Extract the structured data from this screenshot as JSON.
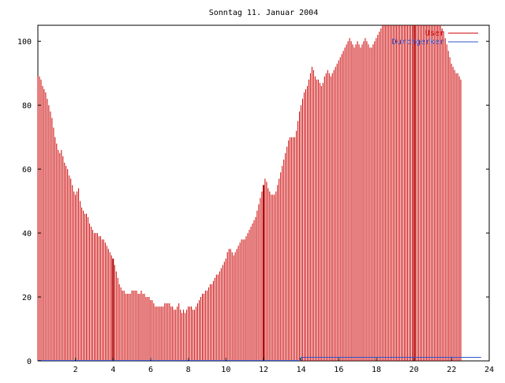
{
  "chart_data": {
    "type": "bar",
    "title": "Sonntag 11. Januar 2004",
    "xlabel": "",
    "ylabel": "",
    "xlim": [
      0,
      24
    ],
    "ylim": [
      0,
      105
    ],
    "x_ticks": [
      2,
      4,
      6,
      8,
      10,
      12,
      14,
      16,
      18,
      20,
      22,
      24
    ],
    "x_tick_labels": [
      "2",
      "4",
      "6",
      "8",
      "10",
      "12",
      "14",
      "16",
      "18",
      "20",
      "22",
      "24"
    ],
    "y_ticks": [
      0,
      20,
      40,
      60,
      80,
      100
    ],
    "y_tick_labels": [
      "0",
      "20",
      "40",
      "60",
      "80",
      "100"
    ],
    "grid": false,
    "legend": "top-right",
    "x_step_hours": 0.0833,
    "series": [
      {
        "name": "User",
        "color": "#cc0000",
        "values": [
          89,
          89,
          88,
          86,
          85,
          84,
          82,
          80,
          78,
          76,
          73,
          70,
          68,
          66,
          65,
          66,
          64,
          62,
          61,
          60,
          58,
          57,
          55,
          53,
          52,
          53,
          54,
          50,
          48,
          47,
          46,
          46,
          45,
          43,
          42,
          41,
          40,
          40,
          40,
          39,
          39,
          38,
          38,
          37,
          36,
          35,
          34,
          33,
          32,
          30,
          28,
          26,
          24,
          23,
          22,
          22,
          21,
          21,
          21,
          21,
          22,
          22,
          22,
          22,
          21,
          21,
          22,
          21,
          21,
          20,
          20,
          20,
          19,
          19,
          18,
          17,
          17,
          17,
          17,
          17,
          17,
          18,
          18,
          18,
          18,
          17,
          17,
          16,
          16,
          17,
          18,
          16,
          15,
          16,
          15,
          16,
          17,
          17,
          17,
          16,
          16,
          17,
          18,
          19,
          20,
          21,
          21,
          22,
          22,
          23,
          24,
          24,
          25,
          26,
          27,
          27,
          28,
          29,
          30,
          31,
          32,
          34,
          35,
          35,
          34,
          33,
          34,
          35,
          36,
          37,
          38,
          38,
          38,
          39,
          40,
          41,
          42,
          43,
          44,
          45,
          47,
          49,
          51,
          53,
          55,
          57,
          56,
          54,
          53,
          52,
          52,
          52,
          53,
          55,
          57,
          59,
          61,
          63,
          65,
          67,
          69,
          70,
          70,
          70,
          70,
          72,
          75,
          78,
          80,
          82,
          84,
          85,
          86,
          88,
          90,
          92,
          91,
          89,
          88,
          88,
          87,
          86,
          87,
          89,
          90,
          91,
          90,
          89,
          90,
          91,
          92,
          93,
          94,
          95,
          96,
          97,
          98,
          99,
          100,
          101,
          100,
          99,
          98,
          99,
          100,
          99,
          98,
          99,
          100,
          101,
          100,
          99,
          98,
          98,
          99,
          100,
          101,
          102,
          103,
          104,
          105,
          105,
          105,
          105,
          105,
          105,
          105,
          105,
          105,
          105,
          105,
          105,
          105,
          105,
          105,
          105,
          105,
          105,
          105,
          105,
          105,
          105,
          105,
          105,
          105,
          105,
          105,
          105,
          105,
          105,
          105,
          105,
          105,
          105,
          105,
          105,
          105,
          105,
          104,
          103,
          101,
          99,
          97,
          95,
          93,
          92,
          91,
          90,
          90,
          89,
          88
        ]
      },
      {
        "name": "Durchgerker",
        "color": "#3355cc",
        "values": [
          0,
          0,
          0,
          0,
          0,
          0,
          0,
          0,
          0,
          0,
          0,
          0,
          0,
          0,
          0,
          0,
          0,
          0,
          0,
          0,
          0,
          0,
          0,
          0,
          0,
          0,
          0,
          0,
          0,
          0,
          0,
          0,
          0,
          0,
          0,
          0,
          0,
          0,
          0,
          0,
          0,
          0,
          0,
          0,
          0,
          0,
          0,
          0,
          0,
          0,
          0,
          0,
          0,
          0,
          0,
          0,
          0,
          0,
          0,
          0,
          0,
          0,
          0,
          0,
          0,
          0,
          0,
          0,
          0,
          0,
          0,
          0,
          0,
          0,
          0,
          0,
          0,
          0,
          0,
          0,
          0,
          0,
          0,
          0,
          0,
          0,
          0,
          0,
          0,
          0,
          0,
          0,
          0,
          0,
          0,
          0,
          0,
          0,
          0,
          0,
          0,
          0,
          0,
          0,
          0,
          0,
          0,
          0,
          0,
          0,
          0,
          0,
          0,
          0,
          0,
          0,
          0,
          0,
          0,
          0,
          0,
          0,
          0,
          0,
          0,
          0,
          0,
          0,
          0,
          0,
          0,
          0,
          0,
          0,
          0,
          0,
          0,
          0,
          0,
          0,
          0,
          0,
          0,
          0,
          0,
          0,
          0,
          0,
          0,
          0,
          0,
          0,
          0,
          0,
          0,
          0,
          0,
          0,
          0,
          0,
          0,
          0,
          0,
          0,
          0,
          0,
          0,
          0,
          1,
          1,
          1,
          1,
          1,
          1,
          1,
          1,
          1,
          1,
          1,
          1,
          1,
          1,
          1,
          1,
          1,
          1,
          1,
          1,
          1,
          1,
          1,
          1,
          1,
          1,
          1,
          1,
          1,
          1,
          1,
          1,
          1,
          1,
          1,
          1,
          1,
          1,
          1,
          1,
          1,
          1,
          1,
          1,
          1,
          1,
          1,
          1,
          1,
          1,
          1,
          1,
          1,
          1,
          1,
          1,
          1,
          1,
          1,
          1,
          1,
          1,
          1,
          1,
          1,
          1,
          1,
          1,
          1,
          1,
          1,
          1,
          1,
          1,
          1,
          1,
          1,
          1,
          1,
          1,
          1,
          1,
          1,
          1,
          1,
          1,
          1,
          1,
          1,
          1,
          1,
          1,
          1,
          1,
          1,
          1,
          1,
          1,
          1,
          1,
          1,
          1,
          1,
          1,
          1,
          1,
          1,
          1,
          1,
          1,
          1,
          1,
          1,
          1,
          1,
          1
        ]
      }
    ],
    "highlight_bars_x": [
      4,
      12,
      20
    ]
  }
}
